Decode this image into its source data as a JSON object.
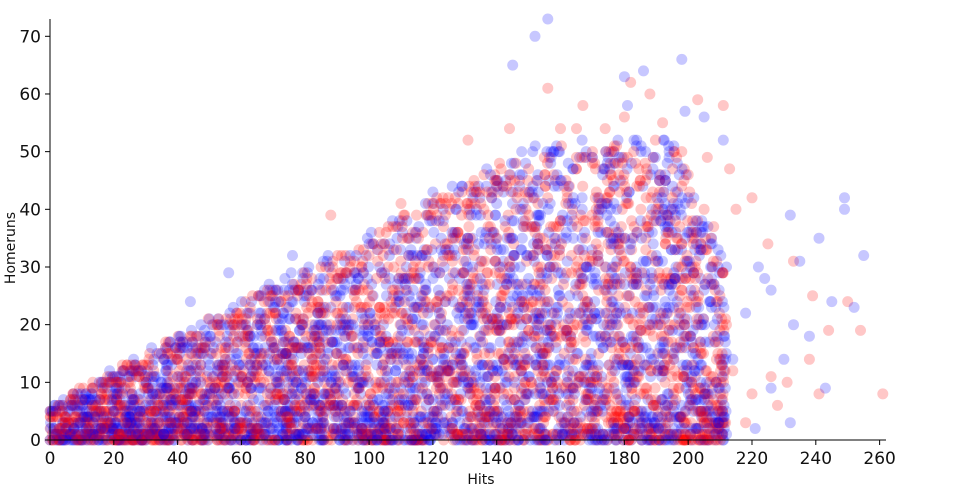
{
  "chart_data": {
    "type": "scatter",
    "title": "",
    "xlabel": "Hits",
    "ylabel": "Homeruns",
    "xlim": [
      0,
      262
    ],
    "ylim": [
      0,
      73
    ],
    "x_ticks": [
      "0",
      "20",
      "40",
      "60",
      "80",
      "100",
      "120",
      "140",
      "160",
      "180",
      "200",
      "220",
      "240",
      "260"
    ],
    "y_ticks": [
      "0",
      "10",
      "20",
      "30",
      "40",
      "50",
      "60",
      "70"
    ],
    "grid": false,
    "legend": "none",
    "colors": {
      "series_a": "#ff0000",
      "series_b": "#0000ff"
    },
    "point_opacity": 0.22,
    "series": [
      {
        "color": "#ff0000",
        "points": [
          [
            156,
            61
          ],
          [
            167,
            58
          ],
          [
            182,
            62
          ],
          [
            188,
            60
          ],
          [
            203,
            59
          ],
          [
            211,
            58
          ],
          [
            144,
            54
          ],
          [
            160,
            54
          ],
          [
            165,
            54
          ],
          [
            131,
            52
          ],
          [
            174,
            54
          ],
          [
            180,
            56
          ],
          [
            192,
            55
          ],
          [
            198,
            50
          ],
          [
            206,
            49
          ],
          [
            213,
            47
          ],
          [
            88,
            39
          ],
          [
            110,
            41
          ],
          [
            129,
            39
          ],
          [
            137,
            43
          ],
          [
            220,
            42
          ],
          [
            215,
            40
          ],
          [
            208,
            37
          ],
          [
            225,
            34
          ],
          [
            233,
            31
          ],
          [
            239,
            25
          ],
          [
            244,
            19
          ],
          [
            250,
            24
          ],
          [
            254,
            19
          ],
          [
            261,
            8
          ],
          [
            238,
            14
          ],
          [
            231,
            10
          ],
          [
            226,
            11
          ],
          [
            220,
            8
          ],
          [
            214,
            12
          ],
          [
            228,
            6
          ],
          [
            241,
            8
          ],
          [
            210,
            5
          ],
          [
            218,
            3
          ],
          [
            94,
            30
          ],
          [
            100,
            32
          ],
          [
            105,
            28
          ],
          [
            112,
            35
          ],
          [
            118,
            33
          ],
          [
            123,
            31
          ],
          [
            78,
            26
          ],
          [
            84,
            24
          ],
          [
            70,
            22
          ],
          [
            62,
            18
          ],
          [
            55,
            14
          ],
          [
            48,
            16
          ],
          [
            37,
            12
          ],
          [
            23,
            12
          ],
          [
            15,
            6
          ],
          [
            8,
            4
          ],
          [
            3,
            2
          ],
          [
            1,
            0
          ],
          [
            0,
            0
          ],
          [
            185,
            45
          ],
          [
            178,
            48
          ],
          [
            170,
            50
          ],
          [
            150,
            47
          ],
          [
            142,
            44
          ],
          [
            135,
            41
          ],
          [
            160,
            38
          ],
          [
            152,
            36
          ],
          [
            175,
            36
          ],
          [
            195,
            42
          ],
          [
            200,
            46
          ],
          [
            205,
            40
          ],
          [
            190,
            38
          ],
          [
            146,
            40
          ],
          [
            138,
            37
          ],
          [
            126,
            35
          ],
          [
            116,
            30
          ],
          [
            108,
            26
          ],
          [
            96,
            24
          ],
          [
            90,
            20
          ],
          [
            82,
            18
          ],
          [
            76,
            16
          ],
          [
            66,
            14
          ],
          [
            58,
            12
          ],
          [
            52,
            10
          ],
          [
            44,
            8
          ],
          [
            34,
            6
          ],
          [
            28,
            4
          ],
          [
            18,
            3
          ],
          [
            12,
            2
          ]
        ]
      },
      {
        "color": "#0000ff",
        "points": [
          [
            156,
            73
          ],
          [
            152,
            70
          ],
          [
            145,
            65
          ],
          [
            180,
            63
          ],
          [
            186,
            64
          ],
          [
            198,
            66
          ],
          [
            181,
            58
          ],
          [
            199,
            57
          ],
          [
            205,
            56
          ],
          [
            211,
            52
          ],
          [
            178,
            52
          ],
          [
            170,
            49
          ],
          [
            157,
            50
          ],
          [
            148,
            46
          ],
          [
            120,
            43
          ],
          [
            100,
            34
          ],
          [
            76,
            32
          ],
          [
            56,
            29
          ],
          [
            44,
            24
          ],
          [
            60,
            24
          ],
          [
            249,
            42
          ],
          [
            249,
            40
          ],
          [
            255,
            32
          ],
          [
            241,
            35
          ],
          [
            232,
            39
          ],
          [
            235,
            31
          ],
          [
            224,
            28
          ],
          [
            226,
            26
          ],
          [
            245,
            24
          ],
          [
            252,
            23
          ],
          [
            233,
            20
          ],
          [
            238,
            18
          ],
          [
            230,
            14
          ],
          [
            243,
            9
          ],
          [
            226,
            9
          ],
          [
            232,
            3
          ],
          [
            221,
            2
          ],
          [
            212,
            1
          ],
          [
            202,
            12
          ],
          [
            209,
            18
          ],
          [
            196,
            28
          ],
          [
            190,
            32
          ],
          [
            184,
            36
          ],
          [
            172,
            40
          ],
          [
            164,
            42
          ],
          [
            158,
            44
          ],
          [
            140,
            41
          ],
          [
            132,
            39
          ],
          [
            126,
            36
          ],
          [
            115,
            32
          ],
          [
            104,
            29
          ],
          [
            92,
            26
          ],
          [
            84,
            22
          ],
          [
            72,
            20
          ],
          [
            64,
            18
          ],
          [
            56,
            16
          ],
          [
            50,
            13
          ],
          [
            40,
            11
          ],
          [
            32,
            9
          ],
          [
            26,
            7
          ],
          [
            20,
            5
          ],
          [
            14,
            4
          ],
          [
            9,
            3
          ],
          [
            5,
            2
          ],
          [
            2,
            1
          ],
          [
            0,
            0
          ],
          [
            168,
            30
          ],
          [
            150,
            28
          ],
          [
            136,
            26
          ],
          [
            122,
            22
          ],
          [
            110,
            20
          ],
          [
            98,
            18
          ],
          [
            86,
            14
          ],
          [
            74,
            12
          ],
          [
            62,
            10
          ],
          [
            50,
            8
          ],
          [
            38,
            6
          ],
          [
            28,
            3
          ],
          [
            16,
            2
          ],
          [
            176,
            24
          ],
          [
            188,
            20
          ],
          [
            196,
            16
          ],
          [
            204,
            10
          ],
          [
            214,
            14
          ],
          [
            218,
            22
          ],
          [
            222,
            30
          ]
        ]
      }
    ]
  }
}
